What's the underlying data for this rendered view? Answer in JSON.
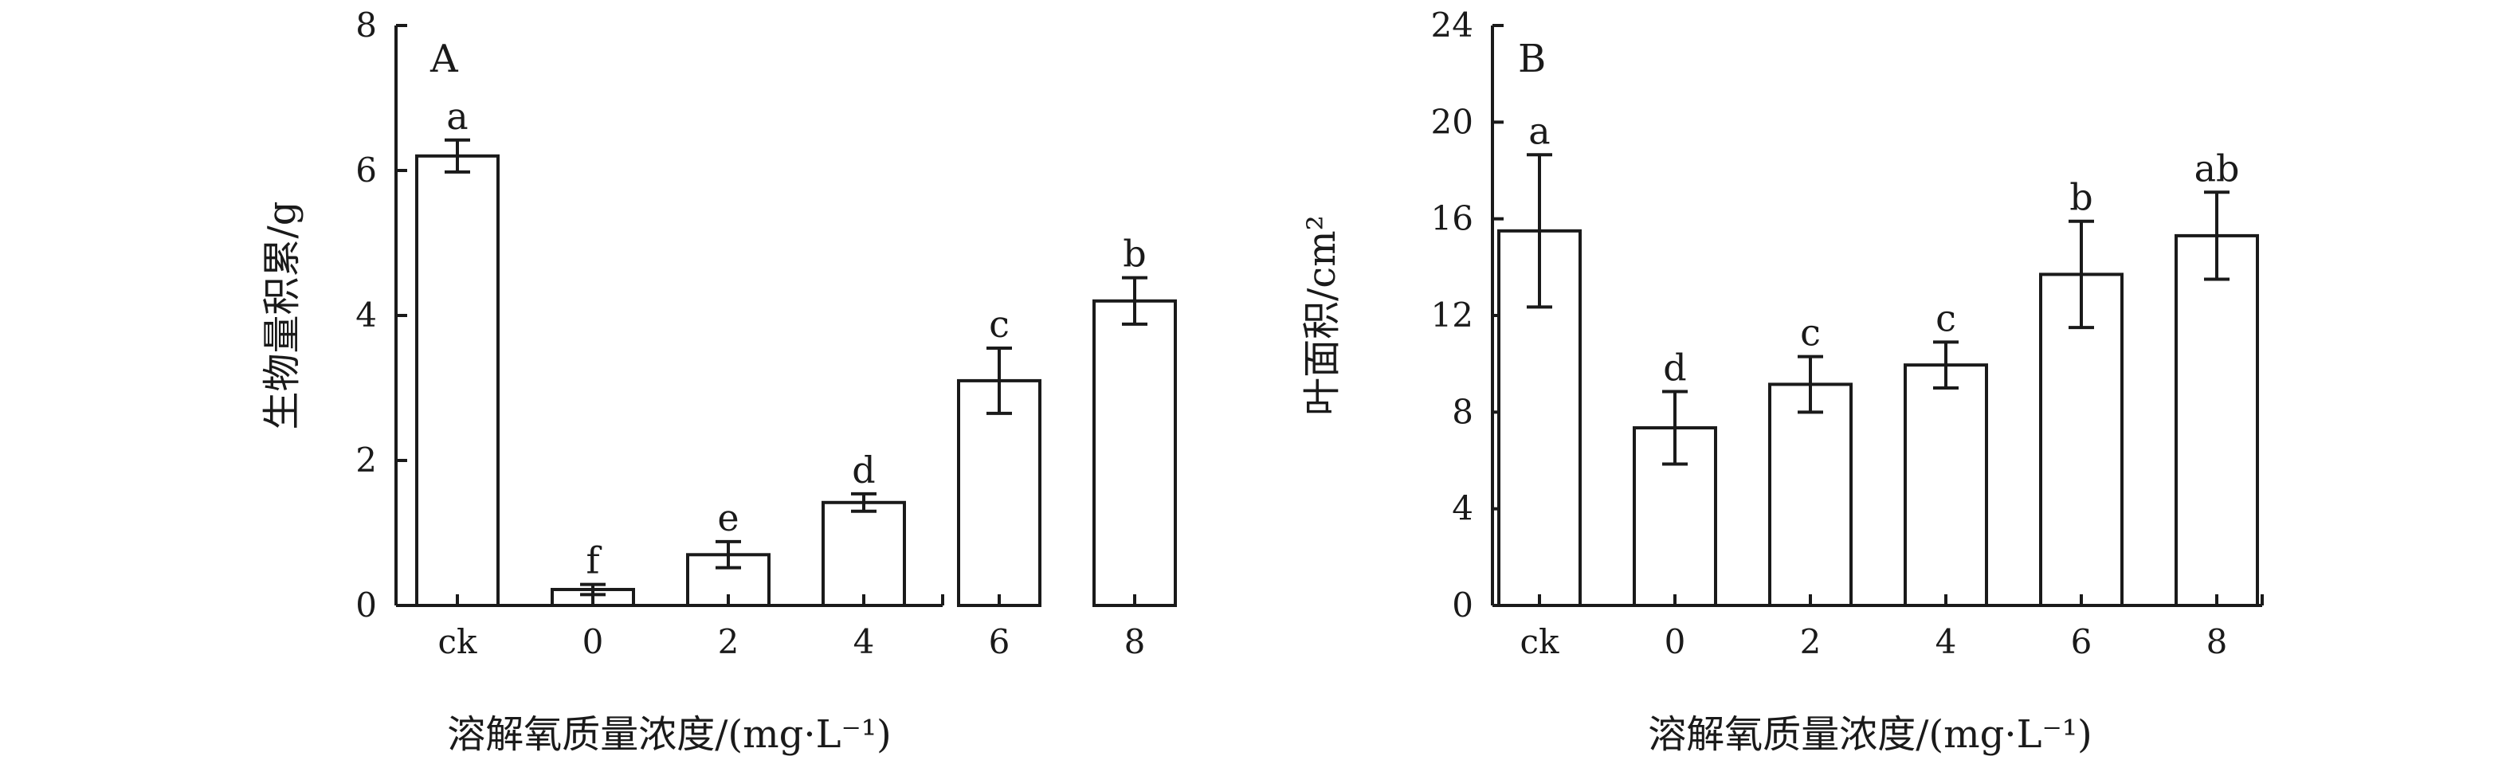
{
  "chart_data": [
    {
      "type": "bar",
      "panel": "A",
      "categories": [
        "ck",
        "0",
        "2",
        "4",
        "6",
        "8"
      ],
      "values": [
        6.2,
        0.22,
        0.7,
        1.42,
        3.1,
        4.2
      ],
      "errors": [
        0.22,
        0.07,
        0.18,
        0.12,
        0.45,
        0.32
      ],
      "significance": [
        "a",
        "f",
        "e",
        "d",
        "c",
        "b"
      ],
      "xlabel": "溶解氧质量浓度/(mg·L⁻¹)",
      "ylabel": "生物量积累/g",
      "ylim": [
        0,
        8
      ],
      "yticks": [
        0,
        2,
        4,
        6,
        8
      ],
      "grid": false
    },
    {
      "type": "bar",
      "panel": "B",
      "categories": [
        "ck",
        "0",
        "2",
        "4",
        "6",
        "8"
      ],
      "values": [
        15.5,
        7.35,
        9.15,
        9.95,
        13.7,
        15.3
      ],
      "errors": [
        3.15,
        1.5,
        1.15,
        0.95,
        2.2,
        1.8
      ],
      "significance": [
        "a",
        "d",
        "c",
        "c",
        "b",
        "ab"
      ],
      "xlabel": "溶解氧质量浓度/(mg·L⁻¹)",
      "ylabel": "叶面积/cm²",
      "ylim": [
        0,
        24
      ],
      "yticks": [
        0,
        4,
        8,
        12,
        16,
        20,
        24
      ],
      "grid": false
    }
  ]
}
